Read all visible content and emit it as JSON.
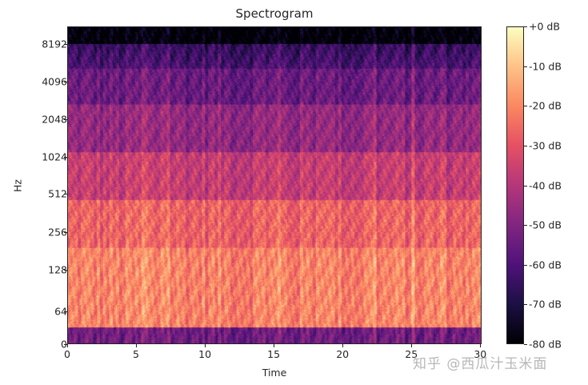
{
  "chart_data": {
    "type": "heatmap",
    "title": "Spectrogram",
    "xlabel": "Time",
    "ylabel": "Hz",
    "x_ticks": [
      0,
      5,
      10,
      15,
      20,
      25,
      30
    ],
    "x_tick_labels": [
      "0",
      "5",
      "10",
      "15",
      "20",
      "25",
      "30"
    ],
    "xlim": [
      0,
      30.1
    ],
    "y_scale": "log",
    "y_ticks": [
      0,
      64,
      128,
      256,
      512,
      1024,
      2048,
      4096,
      8192
    ],
    "y_tick_labels": [
      "0",
      "64",
      "128",
      "256",
      "512",
      "1024",
      "2048",
      "4096",
      "8192"
    ],
    "colormap": "magma",
    "colorbar": {
      "ticks": [
        0,
        -10,
        -20,
        -30,
        -40,
        -50,
        -60,
        -70,
        -80
      ],
      "labels": [
        "+0 dB",
        "-10 dB",
        "-20 dB",
        "-30 dB",
        "-40 dB",
        "-50 dB",
        "-60 dB",
        "-70 dB",
        "-80 dB"
      ],
      "range": [
        -80,
        0
      ]
    },
    "description": "Log-frequency power spectrogram of ~30s audio; energy strongest (approx -10 to -25 dB) in 30-300 Hz band, decreasing with frequency to about -60 to -70 dB near 8 kHz; near-black (-80 dB) above ~9 kHz; dark band below ~30 Hz; vertical transient striations throughout.",
    "band_levels_db": [
      {
        "band": "0-30 Hz",
        "approx_db": -55
      },
      {
        "band": "30-150 Hz",
        "approx_db": -20
      },
      {
        "band": "150-400 Hz",
        "approx_db": -28
      },
      {
        "band": "400-1024 Hz",
        "approx_db": -38
      },
      {
        "band": "1024-4096 Hz",
        "approx_db": -50
      },
      {
        "band": "4096-8192 Hz",
        "approx_db": -60
      },
      {
        "band": ">9000 Hz",
        "approx_db": -80
      }
    ],
    "grid": false,
    "legend_position": "right (colorbar)"
  },
  "watermark": "知乎 @西瓜汁玉米面",
  "colors": {
    "cmap_stops": [
      "#000004",
      "#1c1044",
      "#4f127b",
      "#812581",
      "#b5367a",
      "#e55064",
      "#fb8761",
      "#fec287",
      "#fcfdbf"
    ]
  }
}
